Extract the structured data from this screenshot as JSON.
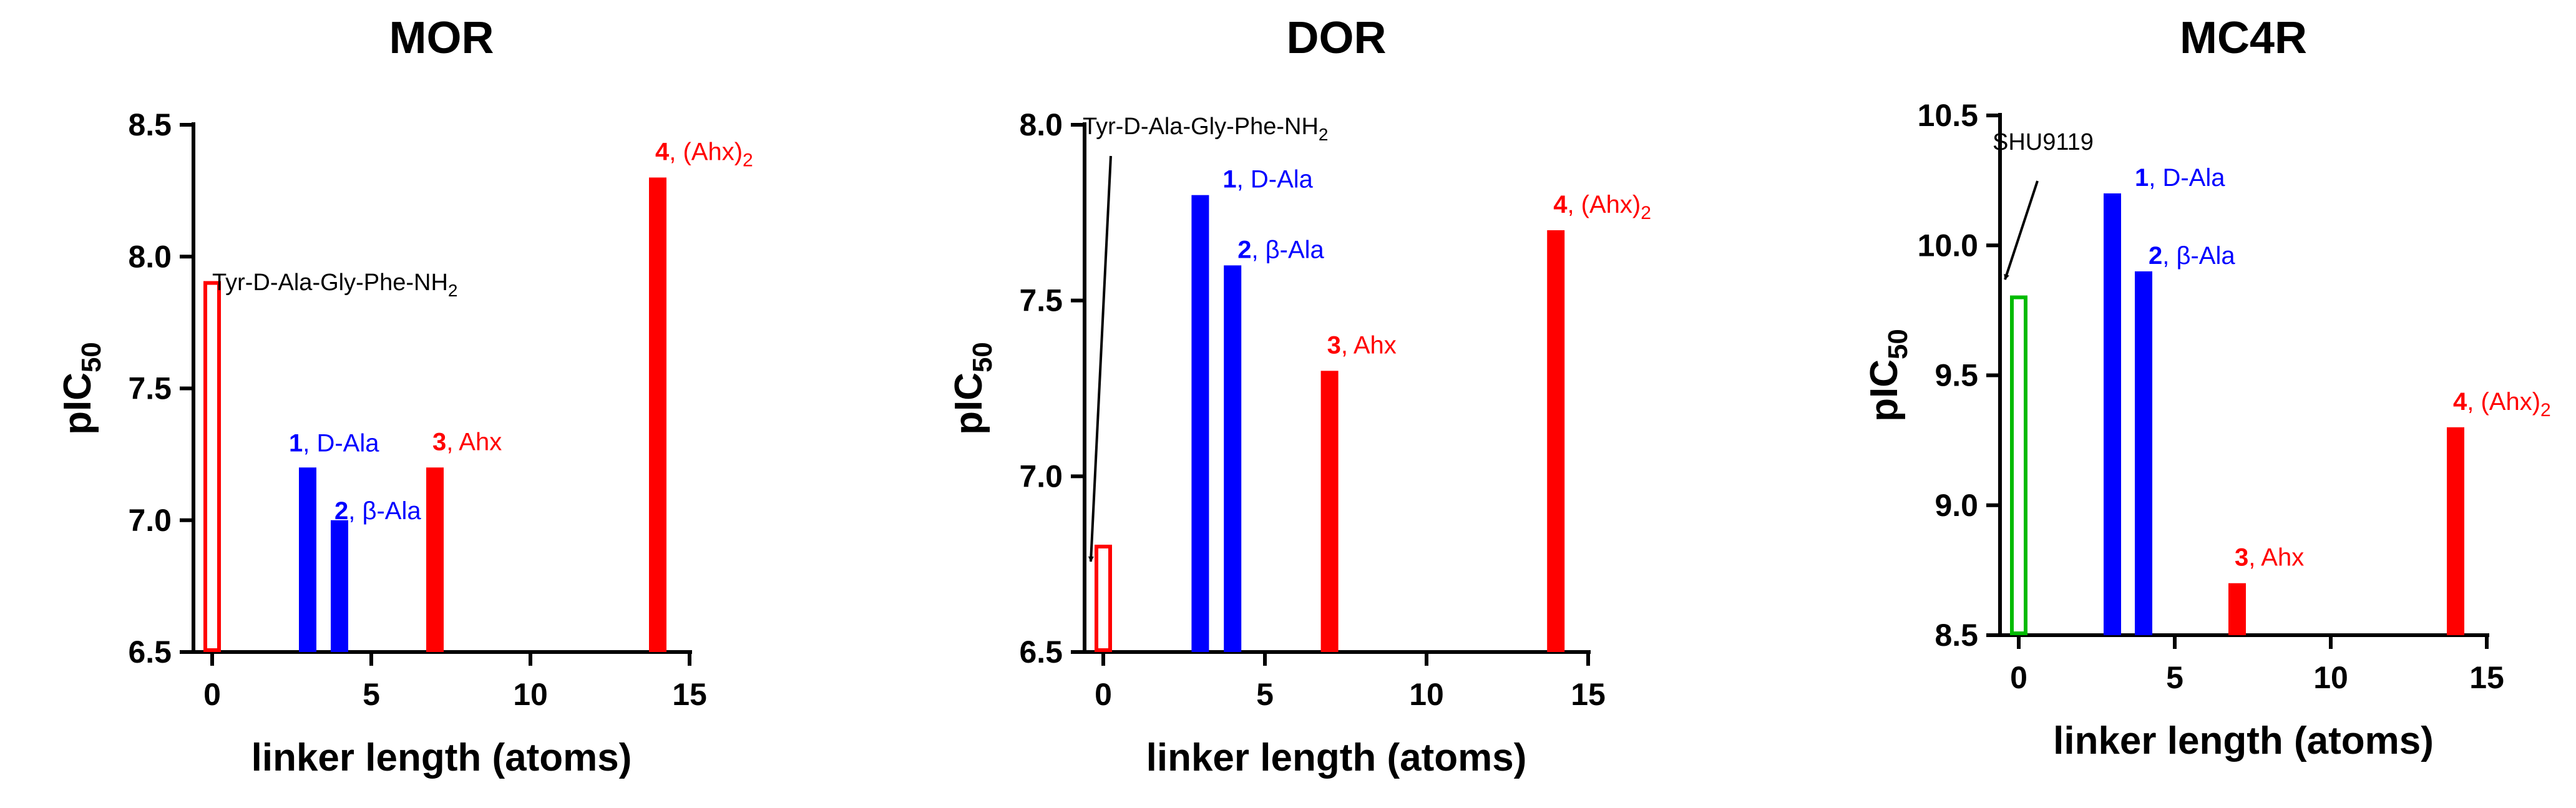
{
  "chart_data": [
    {
      "type": "bar",
      "title": "MOR",
      "xlabel": "linker length (atoms)",
      "ylabel": "pIC50",
      "xlim": [
        0,
        15
      ],
      "ylim": [
        6.5,
        8.5
      ],
      "xticks": [
        0,
        5,
        10,
        15
      ],
      "xtick_labels": [
        "0",
        "5",
        "10",
        "15"
      ],
      "yticks": [
        6.5,
        7.0,
        7.5,
        8.0,
        8.5
      ],
      "ytick_labels": [
        "6.5",
        "7.0",
        "7.5",
        "8.0",
        "8.5"
      ],
      "grid": false,
      "bars": [
        {
          "x": 0,
          "value": 7.9,
          "color": "#ff0000",
          "fill": "none",
          "label_num": "",
          "label_text": ""
        },
        {
          "x": 3,
          "value": 7.2,
          "color": "#0000ff",
          "fill": "solid",
          "label_num": "1",
          "label_text": ", D-Ala"
        },
        {
          "x": 4,
          "value": 7.0,
          "color": "#0000ff",
          "fill": "solid",
          "label_num": "2",
          "label_text": ", β-Ala"
        },
        {
          "x": 7,
          "value": 7.2,
          "color": "#ff0000",
          "fill": "solid",
          "label_num": "3",
          "label_text": ", Ahx"
        },
        {
          "x": 14,
          "value": 8.3,
          "color": "#ff0000",
          "fill": "solid",
          "label_num": "4",
          "label_text": ", (Ahx)",
          "label_sub": "2"
        }
      ],
      "reference_label": {
        "text": "Tyr-D-Ala-Gly-Phe-NH",
        "sub": "2",
        "arrow": false
      }
    },
    {
      "type": "bar",
      "title": "DOR",
      "xlabel": "linker length (atoms)",
      "ylabel": "pIC50",
      "xlim": [
        0,
        15
      ],
      "ylim": [
        6.5,
        8.0
      ],
      "xticks": [
        0,
        5,
        10,
        15
      ],
      "xtick_labels": [
        "0",
        "5",
        "10",
        "15"
      ],
      "yticks": [
        6.5,
        7.0,
        7.5,
        8.0
      ],
      "ytick_labels": [
        "6.5",
        "7.0",
        "7.5",
        "8.0"
      ],
      "grid": false,
      "bars": [
        {
          "x": 0,
          "value": 6.8,
          "color": "#ff0000",
          "fill": "none",
          "label_num": "",
          "label_text": ""
        },
        {
          "x": 3,
          "value": 7.8,
          "color": "#0000ff",
          "fill": "solid",
          "label_num": "1",
          "label_text": ", D-Ala"
        },
        {
          "x": 4,
          "value": 7.6,
          "color": "#0000ff",
          "fill": "solid",
          "label_num": "2",
          "label_text": ", β-Ala"
        },
        {
          "x": 7,
          "value": 7.3,
          "color": "#ff0000",
          "fill": "solid",
          "label_num": "3",
          "label_text": ", Ahx"
        },
        {
          "x": 14,
          "value": 7.7,
          "color": "#ff0000",
          "fill": "solid",
          "label_num": "4",
          "label_text": ", (Ahx)",
          "label_sub": "2"
        }
      ],
      "reference_label": {
        "text": "Tyr-D-Ala-Gly-Phe-NH",
        "sub": "2",
        "arrow": true
      }
    },
    {
      "type": "bar",
      "title": "MC4R",
      "xlabel": "linker length (atoms)",
      "ylabel": "pIC50",
      "xlim": [
        0,
        15
      ],
      "ylim": [
        8.5,
        10.5
      ],
      "xticks": [
        0,
        5,
        10,
        15
      ],
      "xtick_labels": [
        "0",
        "5",
        "10",
        "15"
      ],
      "yticks": [
        8.5,
        9.0,
        9.5,
        10.0,
        10.5
      ],
      "ytick_labels": [
        "8.5",
        "9.0",
        "9.5",
        "10.0",
        "10.5"
      ],
      "grid": false,
      "bars": [
        {
          "x": 0,
          "value": 9.8,
          "color": "#00bb00",
          "fill": "none",
          "label_num": "",
          "label_text": ""
        },
        {
          "x": 3,
          "value": 10.2,
          "color": "#0000ff",
          "fill": "solid",
          "label_num": "1",
          "label_text": ", D-Ala"
        },
        {
          "x": 4,
          "value": 9.9,
          "color": "#0000ff",
          "fill": "solid",
          "label_num": "2",
          "label_text": ", β-Ala"
        },
        {
          "x": 7,
          "value": 8.7,
          "color": "#ff0000",
          "fill": "solid",
          "label_num": "3",
          "label_text": ", Ahx"
        },
        {
          "x": 14,
          "value": 9.3,
          "color": "#ff0000",
          "fill": "solid",
          "label_num": "4",
          "label_text": ", (Ahx)",
          "label_sub": "2"
        }
      ],
      "reference_label": {
        "text": "SHU9119",
        "sub": "",
        "arrow": true
      }
    }
  ]
}
